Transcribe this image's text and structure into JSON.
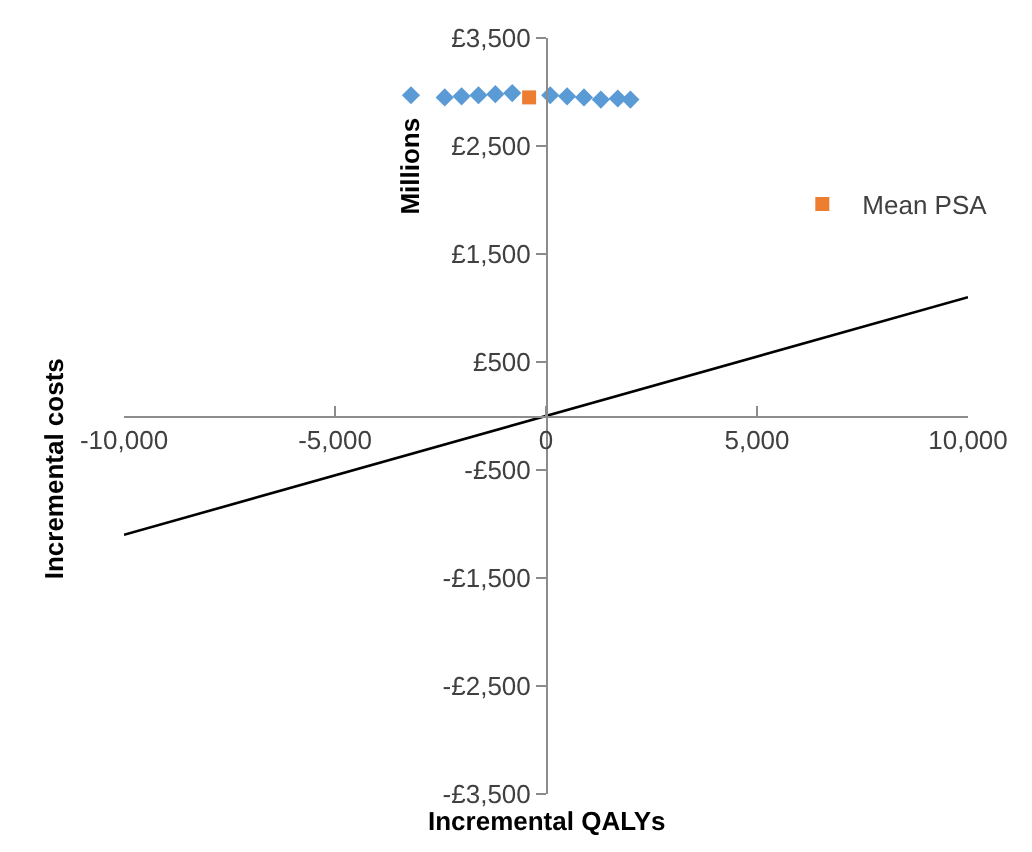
{
  "chart_data": {
    "type": "scatter",
    "xlabel": "Incremental QALYs",
    "ylabel": "Incremental costs",
    "annotations": [
      "Millions"
    ],
    "xlim": [
      -10000,
      10000
    ],
    "xticks": [
      {
        "value": -10000,
        "label": "-10,000"
      },
      {
        "value": -5000,
        "label": "-5,000"
      },
      0,
      {
        "value": 5000,
        "label": "5,000"
      },
      {
        "value": 10000,
        "label": "10,000"
      }
    ],
    "ylim": [
      -3500,
      3500
    ],
    "yticks": [
      {
        "value": -3500,
        "label": "-£3,500"
      },
      {
        "value": -2500,
        "label": "-£2,500"
      },
      {
        "value": -1500,
        "label": "-£1,500"
      },
      {
        "value": -500,
        "label": "-£500"
      },
      {
        "value": 500,
        "label": "£500"
      },
      {
        "value": 1500,
        "label": "£1,500"
      },
      {
        "value": 2500,
        "label": "£2,500"
      },
      {
        "value": 3500,
        "label": "£3,500"
      }
    ],
    "legend": "top right",
    "series": [
      {
        "marker": "diamond",
        "color": "#5b9bd5",
        "x": [
          -3200,
          -2400,
          -2000,
          -1600,
          -1200,
          -800,
          100,
          500,
          900,
          1300,
          1700,
          2000
        ],
        "values": [
          2970,
          2950,
          2960,
          2970,
          2980,
          2990,
          2970,
          2960,
          2950,
          2930,
          2940,
          2930
        ]
      },
      {
        "type": "line",
        "color": "#000000",
        "line_style": "solid",
        "marker": "none",
        "x": [
          -10000,
          10000
        ],
        "values": [
          -1100,
          1100
        ]
      },
      {
        "name": "Mean PSA",
        "marker": "square",
        "color": "#ed7d31",
        "x": [
          -400
        ],
        "values": [
          2950
        ]
      }
    ]
  }
}
